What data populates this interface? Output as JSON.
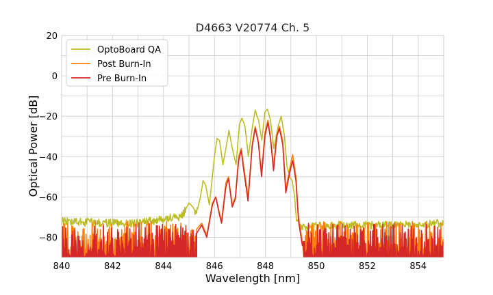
{
  "chart_data": {
    "type": "line",
    "title": "D4663 V20774 Ch. 5",
    "xlabel": "Wavelength [nm]",
    "ylabel": "Optical Power [dB]",
    "xlim": [
      840,
      855
    ],
    "ylim": [
      -90,
      20
    ],
    "xticks": [
      840,
      842,
      844,
      846,
      848,
      850,
      852,
      854
    ],
    "yticks": [
      20,
      0,
      -20,
      -40,
      -60,
      -80
    ],
    "xtick_labels": [
      "840",
      "842",
      "844",
      "846",
      "848",
      "850",
      "852",
      "854"
    ],
    "ytick_labels": [
      "20",
      "0",
      "−20",
      "−40",
      "−60",
      "−80"
    ],
    "grid": true,
    "legend_position": "upper-left",
    "series": [
      {
        "name": "OptoBoard QA",
        "color": "#bcbd22",
        "noise": {
          "x_start": 840.0,
          "x_end": 855.0,
          "floor_min": -78,
          "floor_max": -70
        },
        "points": [
          [
            840.0,
            -72
          ],
          [
            841.0,
            -72.5
          ],
          [
            842.0,
            -73
          ],
          [
            843.0,
            -73
          ],
          [
            843.8,
            -71.5
          ],
          [
            844.4,
            -70
          ],
          [
            844.7,
            -70
          ],
          [
            845.0,
            -63
          ],
          [
            845.15,
            -65
          ],
          [
            845.3,
            -68
          ],
          [
            845.45,
            -60
          ],
          [
            845.55,
            -52
          ],
          [
            845.65,
            -54
          ],
          [
            845.8,
            -64
          ],
          [
            846.0,
            -40
          ],
          [
            846.1,
            -31
          ],
          [
            846.2,
            -32
          ],
          [
            846.33,
            -44
          ],
          [
            846.45,
            -36
          ],
          [
            846.57,
            -27
          ],
          [
            846.7,
            -36
          ],
          [
            846.85,
            -44
          ],
          [
            846.98,
            -24
          ],
          [
            847.08,
            -21
          ],
          [
            847.2,
            -25
          ],
          [
            847.33,
            -40
          ],
          [
            847.48,
            -26
          ],
          [
            847.6,
            -17
          ],
          [
            847.73,
            -22
          ],
          [
            847.86,
            -32
          ],
          [
            847.98,
            -18
          ],
          [
            848.08,
            -16.5
          ],
          [
            848.2,
            -22
          ],
          [
            848.33,
            -36
          ],
          [
            848.5,
            -25
          ],
          [
            848.62,
            -20
          ],
          [
            848.75,
            -30
          ],
          [
            848.85,
            -45
          ],
          [
            848.95,
            -50
          ],
          [
            849.05,
            -52
          ],
          [
            849.15,
            -60
          ],
          [
            849.2,
            -70
          ],
          [
            849.3,
            -73
          ],
          [
            849.5,
            -75
          ],
          [
            849.7,
            -75
          ],
          [
            850.5,
            -74
          ],
          [
            852.0,
            -74
          ],
          [
            853.5,
            -74
          ],
          [
            855.0,
            -73
          ]
        ]
      },
      {
        "name": "Post Burn-In",
        "color": "#ff7f0e",
        "noise": {
          "x_start": 840.0,
          "x_end": 855.0,
          "floor_min": -90,
          "floor_max": -72
        },
        "points": [
          [
            845.3,
            -76
          ],
          [
            845.5,
            -73
          ],
          [
            845.7,
            -79
          ],
          [
            845.92,
            -63
          ],
          [
            846.05,
            -60
          ],
          [
            846.2,
            -68
          ],
          [
            846.28,
            -72
          ],
          [
            846.45,
            -53
          ],
          [
            846.55,
            -50
          ],
          [
            846.7,
            -64
          ],
          [
            846.82,
            -60
          ],
          [
            846.95,
            -40
          ],
          [
            847.05,
            -36
          ],
          [
            847.15,
            -45
          ],
          [
            847.32,
            -60
          ],
          [
            847.48,
            -34
          ],
          [
            847.6,
            -25
          ],
          [
            847.72,
            -32
          ],
          [
            847.85,
            -48
          ],
          [
            847.98,
            -28
          ],
          [
            848.1,
            -22
          ],
          [
            848.2,
            -30
          ],
          [
            848.32,
            -45
          ],
          [
            848.45,
            -29
          ],
          [
            848.55,
            -25
          ],
          [
            848.68,
            -32
          ],
          [
            848.8,
            -56
          ],
          [
            848.97,
            -45
          ],
          [
            849.07,
            -39
          ],
          [
            849.2,
            -50
          ],
          [
            849.3,
            -70
          ],
          [
            849.45,
            -82
          ]
        ]
      },
      {
        "name": "Pre Burn-In",
        "color": "#d62728",
        "noise": {
          "x_start": 840.0,
          "x_end": 855.0,
          "floor_min": -90,
          "floor_max": -73
        },
        "points": [
          [
            845.3,
            -78
          ],
          [
            845.5,
            -74
          ],
          [
            845.7,
            -80
          ],
          [
            845.92,
            -64
          ],
          [
            846.05,
            -60
          ],
          [
            846.2,
            -69
          ],
          [
            846.28,
            -73
          ],
          [
            846.45,
            -55
          ],
          [
            846.55,
            -51
          ],
          [
            846.7,
            -65
          ],
          [
            846.82,
            -61
          ],
          [
            846.95,
            -42
          ],
          [
            847.05,
            -37
          ],
          [
            847.15,
            -47
          ],
          [
            847.32,
            -62
          ],
          [
            847.48,
            -35
          ],
          [
            847.6,
            -26
          ],
          [
            847.72,
            -33
          ],
          [
            847.85,
            -50
          ],
          [
            847.98,
            -30
          ],
          [
            848.1,
            -23
          ],
          [
            848.2,
            -31
          ],
          [
            848.32,
            -47
          ],
          [
            848.45,
            -30
          ],
          [
            848.55,
            -26
          ],
          [
            848.68,
            -34
          ],
          [
            848.8,
            -58
          ],
          [
            848.97,
            -47
          ],
          [
            849.07,
            -42
          ],
          [
            849.2,
            -52
          ],
          [
            849.3,
            -72
          ],
          [
            849.45,
            -84
          ]
        ]
      }
    ]
  }
}
